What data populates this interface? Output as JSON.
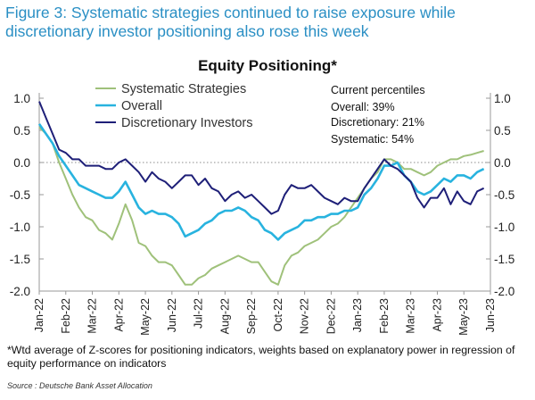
{
  "figure_title": "Figure 3: Systematic strategies continued to raise exposure while discretionary investor positioning also rose this week",
  "footnote": "*Wtd average of Z-scores for positioning indicators, weights based on explanatory power in regression of equity performance on indicators",
  "source": "Source : Deutsche Bank Asset Allocation",
  "colors": {
    "systematic": "#9fc17a",
    "overall": "#28b3df",
    "discretionary": "#1e1f78",
    "title": "#2a8fc4"
  },
  "chart_data": {
    "type": "line",
    "title": "Equity Positioning*",
    "xlabel": "",
    "ylabel": "",
    "ylim": [
      -2.0,
      1.0
    ],
    "yticks": [
      "1.0",
      "0.5",
      "0.0",
      "-0.5",
      "-1.0",
      "-1.5",
      "-2.0"
    ],
    "yticks_right": [
      "1.0",
      "0.5",
      "0.0",
      "-0.5",
      "-1.0",
      "-1.5",
      "-2.0"
    ],
    "xticks": [
      "Jan-22",
      "Feb-22",
      "Mar-22",
      "Apr-22",
      "May-22",
      "Jun-22",
      "Jul-22",
      "Aug-22",
      "Sep-22",
      "Oct-22",
      "Nov-22",
      "Dec-22",
      "Jan-23",
      "Feb-23",
      "Mar-23",
      "Apr-23",
      "May-23",
      "Jun-23"
    ],
    "annotations": {
      "header": "Current percentiles",
      "overall": "Overall: 39%",
      "discretionary": "Discretionary: 21%",
      "systematic": "Systematic: 54%"
    },
    "series": [
      {
        "name": "Systematic Strategies",
        "color": "#9fc17a",
        "x": [
          0,
          0.25,
          0.5,
          0.75,
          1,
          1.25,
          1.5,
          1.75,
          2,
          2.25,
          2.5,
          2.75,
          3,
          3.25,
          3.5,
          3.75,
          4,
          4.25,
          4.5,
          4.75,
          5,
          5.25,
          5.5,
          5.75,
          6,
          6.25,
          6.5,
          6.75,
          7,
          7.25,
          7.5,
          7.75,
          8,
          8.25,
          8.5,
          8.75,
          9,
          9.25,
          9.5,
          9.75,
          10,
          10.25,
          10.5,
          10.75,
          11,
          11.25,
          11.5,
          11.75,
          12,
          12.25,
          12.5,
          12.75,
          13,
          13.25,
          13.5,
          13.75,
          14,
          14.25,
          14.5,
          14.75,
          15,
          15.25,
          15.5,
          15.75,
          16,
          16.25,
          16.5,
          16.75
        ],
        "values": [
          0.55,
          0.45,
          0.3,
          0.0,
          -0.25,
          -0.5,
          -0.7,
          -0.85,
          -0.9,
          -1.05,
          -1.1,
          -1.2,
          -0.95,
          -0.65,
          -0.9,
          -1.25,
          -1.3,
          -1.45,
          -1.55,
          -1.55,
          -1.6,
          -1.75,
          -1.9,
          -1.9,
          -1.8,
          -1.75,
          -1.65,
          -1.6,
          -1.55,
          -1.5,
          -1.45,
          -1.5,
          -1.55,
          -1.55,
          -1.7,
          -1.85,
          -1.9,
          -1.6,
          -1.45,
          -1.4,
          -1.3,
          -1.25,
          -1.2,
          -1.1,
          -1.0,
          -0.95,
          -0.85,
          -0.7,
          -0.55,
          -0.4,
          -0.25,
          -0.15,
          0.05,
          0.05,
          0.0,
          -0.1,
          -0.1,
          -0.15,
          -0.2,
          -0.15,
          -0.05,
          0.0,
          0.05,
          0.05,
          0.1,
          0.12,
          0.15,
          0.18
        ]
      },
      {
        "name": "Overall",
        "color": "#28b3df",
        "x": [
          0,
          0.25,
          0.5,
          0.75,
          1,
          1.25,
          1.5,
          1.75,
          2,
          2.25,
          2.5,
          2.75,
          3,
          3.25,
          3.5,
          3.75,
          4,
          4.25,
          4.5,
          4.75,
          5,
          5.25,
          5.5,
          5.75,
          6,
          6.25,
          6.5,
          6.75,
          7,
          7.25,
          7.5,
          7.75,
          8,
          8.25,
          8.5,
          8.75,
          9,
          9.25,
          9.5,
          9.75,
          10,
          10.25,
          10.5,
          10.75,
          11,
          11.25,
          11.5,
          11.75,
          12,
          12.25,
          12.5,
          12.75,
          13,
          13.25,
          13.5,
          13.75,
          14,
          14.25,
          14.5,
          14.75,
          15,
          15.25,
          15.5,
          15.75,
          16,
          16.25,
          16.5,
          16.75
        ],
        "values": [
          0.6,
          0.45,
          0.3,
          0.1,
          -0.05,
          -0.2,
          -0.35,
          -0.4,
          -0.45,
          -0.5,
          -0.55,
          -0.55,
          -0.45,
          -0.3,
          -0.5,
          -0.7,
          -0.8,
          -0.75,
          -0.8,
          -0.8,
          -0.85,
          -0.95,
          -1.15,
          -1.1,
          -1.05,
          -0.95,
          -0.9,
          -0.8,
          -0.75,
          -0.75,
          -0.7,
          -0.75,
          -0.85,
          -0.9,
          -1.05,
          -1.1,
          -1.2,
          -1.1,
          -1.05,
          -1.0,
          -0.9,
          -0.9,
          -0.85,
          -0.85,
          -0.8,
          -0.8,
          -0.75,
          -0.75,
          -0.7,
          -0.5,
          -0.4,
          -0.25,
          -0.05,
          -0.05,
          0.0,
          -0.2,
          -0.3,
          -0.45,
          -0.5,
          -0.45,
          -0.35,
          -0.25,
          -0.3,
          -0.2,
          -0.2,
          -0.25,
          -0.15,
          -0.1
        ]
      },
      {
        "name": "Discretionary Investors",
        "color": "#1e1f78",
        "x": [
          0,
          0.25,
          0.5,
          0.75,
          1,
          1.25,
          1.5,
          1.75,
          2,
          2.25,
          2.5,
          2.75,
          3,
          3.25,
          3.5,
          3.75,
          4,
          4.25,
          4.5,
          4.75,
          5,
          5.25,
          5.5,
          5.75,
          6,
          6.25,
          6.5,
          6.75,
          7,
          7.25,
          7.5,
          7.75,
          8,
          8.25,
          8.5,
          8.75,
          9,
          9.25,
          9.5,
          9.75,
          10,
          10.25,
          10.5,
          10.75,
          11,
          11.25,
          11.5,
          11.75,
          12,
          12.25,
          12.5,
          12.75,
          13,
          13.25,
          13.5,
          13.75,
          14,
          14.25,
          14.5,
          14.75,
          15,
          15.25,
          15.5,
          15.75,
          16,
          16.25,
          16.5,
          16.75
        ],
        "values": [
          0.95,
          0.7,
          0.45,
          0.2,
          0.15,
          0.05,
          0.05,
          -0.05,
          -0.05,
          -0.05,
          -0.1,
          -0.1,
          0.0,
          0.05,
          -0.05,
          -0.15,
          -0.3,
          -0.15,
          -0.25,
          -0.3,
          -0.4,
          -0.3,
          -0.2,
          -0.2,
          -0.35,
          -0.25,
          -0.4,
          -0.45,
          -0.6,
          -0.5,
          -0.45,
          -0.55,
          -0.5,
          -0.6,
          -0.7,
          -0.8,
          -0.75,
          -0.5,
          -0.35,
          -0.4,
          -0.4,
          -0.35,
          -0.45,
          -0.55,
          -0.6,
          -0.65,
          -0.55,
          -0.6,
          -0.6,
          -0.4,
          -0.25,
          -0.1,
          0.05,
          -0.05,
          -0.1,
          -0.2,
          -0.3,
          -0.55,
          -0.7,
          -0.55,
          -0.55,
          -0.4,
          -0.65,
          -0.45,
          -0.6,
          -0.65,
          -0.45,
          -0.4
        ]
      }
    ]
  }
}
